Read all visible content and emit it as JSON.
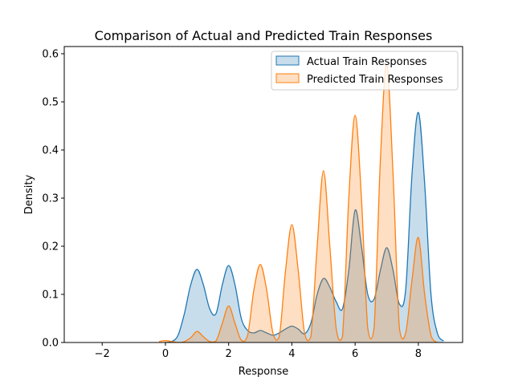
{
  "chart_data": {
    "type": "area",
    "title": "Comparison of Actual and Predicted Train Responses",
    "xlabel": "Response",
    "ylabel": "Density",
    "xlim": [
      -3.2,
      9.4
    ],
    "ylim": [
      0,
      0.615
    ],
    "xticks": [
      -2,
      0,
      2,
      4,
      6,
      8
    ],
    "yticks": [
      0.0,
      0.1,
      0.2,
      0.3,
      0.4,
      0.5,
      0.6
    ],
    "xtick_labels": [
      "−2",
      "0",
      "2",
      "4",
      "6",
      "8"
    ],
    "ytick_labels": [
      "0.0",
      "0.1",
      "0.2",
      "0.3",
      "0.4",
      "0.5",
      "0.6"
    ],
    "grid": false,
    "legend_position": "top-right",
    "series": [
      {
        "name": "Actual Train Responses",
        "color": "#1f77b4",
        "x": [
          0.0,
          0.2,
          0.4,
          0.6,
          0.8,
          1.0,
          1.2,
          1.4,
          1.6,
          1.8,
          2.0,
          2.2,
          2.4,
          2.6,
          2.8,
          3.0,
          3.2,
          3.4,
          3.6,
          3.8,
          4.0,
          4.2,
          4.4,
          4.6,
          4.8,
          5.0,
          5.2,
          5.4,
          5.6,
          5.8,
          6.0,
          6.2,
          6.4,
          6.6,
          6.8,
          7.0,
          7.2,
          7.4,
          7.6,
          7.8,
          8.0,
          8.2,
          8.4,
          8.6,
          8.8
        ],
        "y": [
          0.0,
          0.002,
          0.015,
          0.06,
          0.12,
          0.152,
          0.12,
          0.07,
          0.06,
          0.12,
          0.16,
          0.12,
          0.05,
          0.025,
          0.02,
          0.025,
          0.02,
          0.015,
          0.02,
          0.028,
          0.034,
          0.028,
          0.018,
          0.04,
          0.1,
          0.133,
          0.115,
          0.085,
          0.07,
          0.15,
          0.275,
          0.2,
          0.1,
          0.09,
          0.15,
          0.197,
          0.15,
          0.08,
          0.11,
          0.35,
          0.478,
          0.33,
          0.1,
          0.02,
          0.003
        ]
      },
      {
        "name": "Predicted Train Responses",
        "color": "#ff7f0e",
        "x": [
          -0.2,
          0.0,
          0.2,
          0.4,
          0.6,
          0.8,
          1.0,
          1.2,
          1.4,
          1.6,
          1.8,
          2.0,
          2.2,
          2.4,
          2.6,
          2.8,
          3.0,
          3.2,
          3.4,
          3.6,
          3.8,
          4.0,
          4.2,
          4.4,
          4.6,
          4.8,
          5.0,
          5.2,
          5.4,
          5.6,
          5.8,
          6.0,
          6.2,
          6.4,
          6.6,
          6.8,
          7.0,
          7.2,
          7.4,
          7.6,
          7.8,
          8.0,
          8.2,
          8.4,
          8.6
        ],
        "y": [
          0.002,
          0.004,
          0.002,
          0.0,
          0.002,
          0.01,
          0.023,
          0.012,
          0.002,
          0.003,
          0.04,
          0.076,
          0.04,
          0.005,
          0.015,
          0.11,
          0.162,
          0.11,
          0.02,
          0.012,
          0.15,
          0.245,
          0.15,
          0.02,
          0.012,
          0.2,
          0.357,
          0.2,
          0.03,
          0.012,
          0.3,
          0.472,
          0.3,
          0.03,
          0.03,
          0.38,
          0.578,
          0.35,
          0.03,
          0.02,
          0.13,
          0.218,
          0.1,
          0.015,
          0.0
        ]
      }
    ]
  }
}
